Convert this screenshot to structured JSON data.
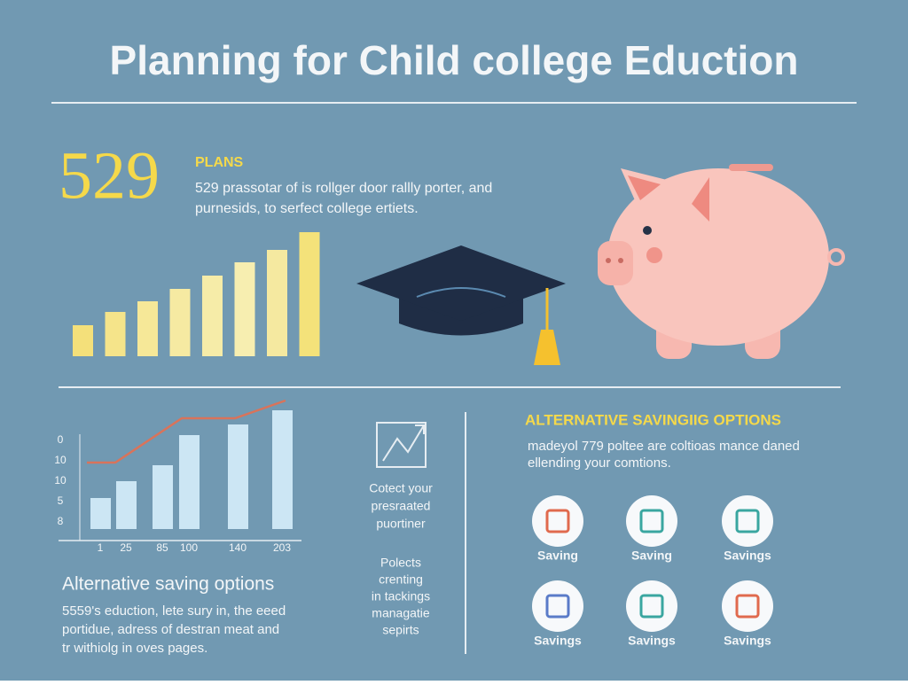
{
  "header": {
    "title": "Planning for Child college Eduction"
  },
  "plans": {
    "number": "529",
    "label": "PLANS",
    "lines": [
      "529 prassotar of is rollger door rallly porter, and",
      "purnesids, to serfect college ertiets."
    ]
  },
  "top_chart": {
    "values": [
      35,
      50,
      62,
      76,
      91,
      106,
      120,
      140
    ]
  },
  "bottom_chart": {
    "yticks": [
      "0",
      "10",
      "10",
      "5",
      "8"
    ],
    "xticks": [
      "1",
      "25",
      "85",
      "100",
      "140",
      "203"
    ],
    "values": [
      35,
      54,
      72,
      106,
      118,
      134
    ],
    "line_values": [
      75,
      75,
      125,
      125,
      145
    ]
  },
  "left_text": {
    "title": "Alternative saving options",
    "lines": [
      "5559's eduction, lete sury in, the eeed",
      "portidue, adress of destran meat and",
      "tr withiolg in oves pages."
    ]
  },
  "middle_text": {
    "block1": [
      "Cotect your",
      "presraated",
      "puortiner"
    ],
    "block2": [
      "Polects",
      "crenting",
      "in tackings",
      "managatie",
      "sepirts"
    ]
  },
  "alternatives": {
    "title": "ALTERNATIVE SAVINGIIG OPTIONS",
    "lines": [
      "madeyol 779 poltee are coltioas mance daned",
      "ellending your comtions."
    ],
    "items": [
      "Saving",
      "Saving",
      "Savings",
      "Savings",
      "Savings",
      "Savings"
    ]
  }
}
